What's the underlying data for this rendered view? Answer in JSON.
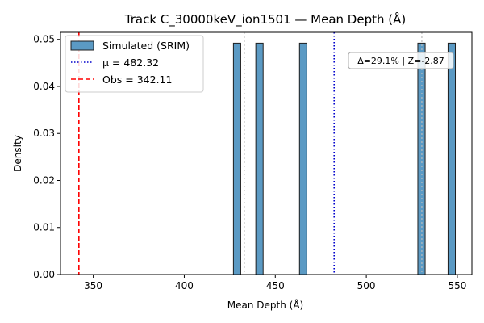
{
  "chart_data": {
    "type": "histogram",
    "title": "Track C_30000keV_ion1501 — Mean Depth (Å)",
    "xlabel": "Mean Depth (Å)",
    "ylabel": "Density",
    "xlim": [
      332,
      558
    ],
    "ylim": [
      0,
      0.0515
    ],
    "xticks": [
      350,
      400,
      450,
      500,
      550
    ],
    "yticks": [
      0.0,
      0.01,
      0.02,
      0.03,
      0.04,
      0.05
    ],
    "xtick_labels": [
      "350",
      "400",
      "450",
      "500",
      "550"
    ],
    "ytick_labels": [
      "0.00",
      "0.01",
      "0.02",
      "0.03",
      "0.04",
      "0.05"
    ],
    "bin_width": 4.02,
    "bars": [
      {
        "x": 427.0,
        "density": 0.0492
      },
      {
        "x": 439.3,
        "density": 0.0492
      },
      {
        "x": 463.3,
        "density": 0.0492
      },
      {
        "x": 528.3,
        "density": 0.0492
      },
      {
        "x": 544.9,
        "density": 0.0492
      }
    ],
    "bar_color": "#5b9ac4",
    "bar_edge_color": "#1f1f1f",
    "percentile_lines": [
      433.0,
      530.5
    ],
    "percentile_color": "#bbbbbb",
    "mean_line": {
      "value": 482.32,
      "color": "#0000cc",
      "style": "dotted"
    },
    "obs_line": {
      "value": 342.11,
      "color": "#ff0000",
      "style": "dashed"
    },
    "legend": {
      "position": "upper-left",
      "entries": [
        {
          "label": "Simulated (SRIM)",
          "kind": "patch"
        },
        {
          "label": "μ = 482.32",
          "kind": "dotted-line"
        },
        {
          "label": "Obs = 342.11",
          "kind": "dashed-line"
        }
      ]
    },
    "annotation": {
      "text": "Δ=29.1% | Z=-2.87",
      "position": "upper-right"
    },
    "grid": false
  }
}
